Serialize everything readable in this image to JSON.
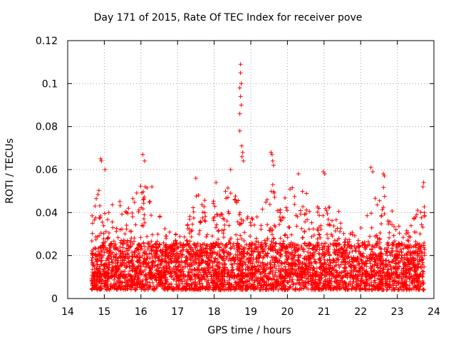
{
  "chart_data": {
    "type": "scatter",
    "title": "Day 171 of 2015, Rate Of TEC Index for receiver pove",
    "xlabel": "GPS time / hours",
    "ylabel": "ROTI / TECUs",
    "xlim": [
      14,
      24
    ],
    "ylim": [
      0,
      0.12
    ],
    "xticks": [
      "14",
      "15",
      "16",
      "17",
      "18",
      "19",
      "20",
      "21",
      "22",
      "23",
      "24"
    ],
    "yticks": [
      "0",
      "0.02",
      "0.04",
      "0.06",
      "0.08",
      "0.1",
      "0.12"
    ],
    "grid": true,
    "marker": "+",
    "marker_color": "#ff0000",
    "data_x_range": [
      14.65,
      23.75
    ],
    "envelope": [
      [
        14.7,
        0.045
      ],
      [
        14.9,
        0.055
      ],
      [
        15.0,
        0.04
      ],
      [
        15.3,
        0.045
      ],
      [
        15.6,
        0.047
      ],
      [
        15.9,
        0.05
      ],
      [
        16.1,
        0.06
      ],
      [
        16.3,
        0.048
      ],
      [
        16.6,
        0.035
      ],
      [
        16.9,
        0.03
      ],
      [
        17.2,
        0.03
      ],
      [
        17.5,
        0.05
      ],
      [
        17.7,
        0.05
      ],
      [
        18.0,
        0.045
      ],
      [
        18.3,
        0.053
      ],
      [
        18.6,
        0.05
      ],
      [
        18.9,
        0.04
      ],
      [
        19.2,
        0.038
      ],
      [
        19.5,
        0.06
      ],
      [
        19.7,
        0.045
      ],
      [
        20.0,
        0.05
      ],
      [
        20.3,
        0.055
      ],
      [
        20.6,
        0.048
      ],
      [
        20.9,
        0.045
      ],
      [
        21.2,
        0.042
      ],
      [
        21.5,
        0.04
      ],
      [
        21.8,
        0.03
      ],
      [
        22.1,
        0.035
      ],
      [
        22.3,
        0.045
      ],
      [
        22.6,
        0.055
      ],
      [
        22.9,
        0.04
      ],
      [
        23.2,
        0.03
      ],
      [
        23.5,
        0.04
      ],
      [
        23.7,
        0.052
      ]
    ],
    "highlights": [
      [
        14.9,
        0.065
      ],
      [
        14.92,
        0.064
      ],
      [
        15.02,
        0.06
      ],
      [
        16.05,
        0.067
      ],
      [
        16.1,
        0.064
      ],
      [
        18.05,
        0.054
      ],
      [
        18.45,
        0.06
      ],
      [
        18.72,
        0.109
      ],
      [
        18.72,
        0.105
      ],
      [
        18.74,
        0.1
      ],
      [
        18.7,
        0.098
      ],
      [
        18.72,
        0.094
      ],
      [
        18.74,
        0.09
      ],
      [
        18.7,
        0.086
      ],
      [
        18.7,
        0.078
      ],
      [
        18.75,
        0.071
      ],
      [
        18.78,
        0.068
      ],
      [
        18.76,
        0.066
      ],
      [
        18.8,
        0.064
      ],
      [
        19.55,
        0.068
      ],
      [
        19.58,
        0.067
      ],
      [
        19.6,
        0.064
      ],
      [
        19.62,
        0.062
      ],
      [
        19.6,
        0.053
      ],
      [
        20.3,
        0.058
      ],
      [
        20.98,
        0.059
      ],
      [
        21.02,
        0.058
      ],
      [
        22.28,
        0.061
      ],
      [
        22.33,
        0.059
      ],
      [
        22.62,
        0.058
      ],
      [
        22.65,
        0.057
      ],
      [
        23.72,
        0.054
      ],
      [
        23.7,
        0.052
      ],
      [
        16.3,
        0.052
      ],
      [
        17.5,
        0.056
      ]
    ]
  }
}
